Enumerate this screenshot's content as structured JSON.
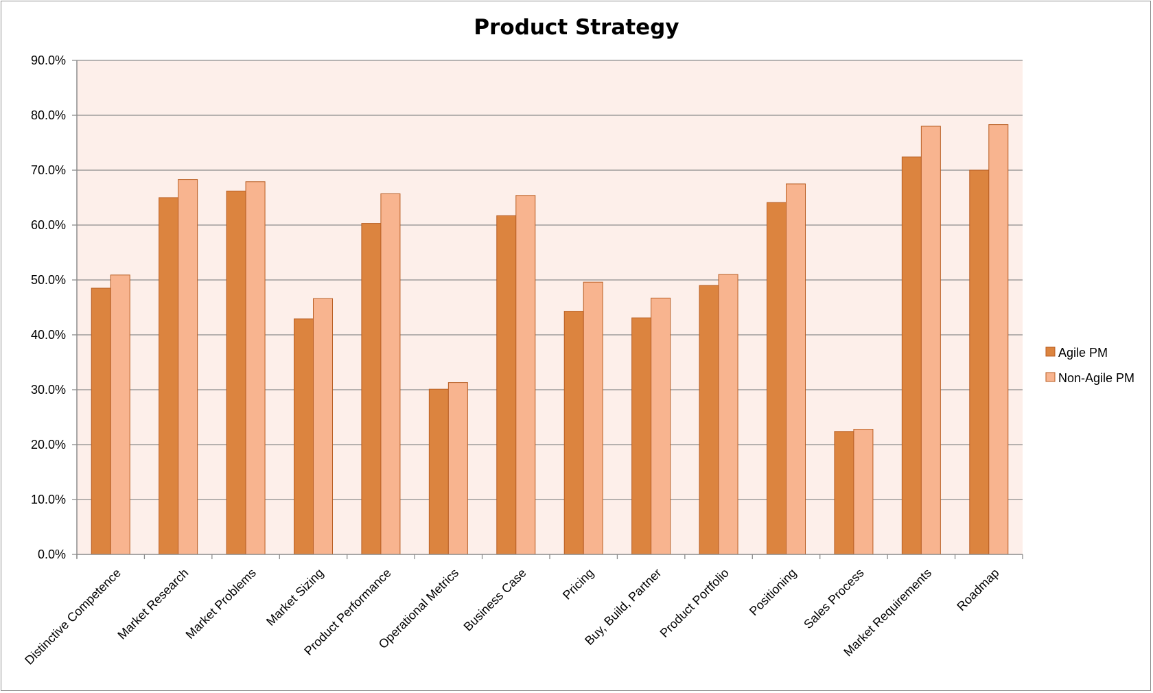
{
  "chart_data": {
    "type": "bar",
    "title": "Product Strategy",
    "xlabel": "",
    "ylabel": "",
    "ylim": [
      0,
      0.9
    ],
    "yticks": [
      "0.0%",
      "10.0%",
      "20.0%",
      "30.0%",
      "40.0%",
      "50.0%",
      "60.0%",
      "70.0%",
      "80.0%",
      "90.0%"
    ],
    "grid": true,
    "legend_position": "right",
    "categories": [
      "Distinctive Competence",
      "Market Research",
      "Market Problems",
      "Market Sizing",
      "Product Performance",
      "Operational Metrics",
      "Business Case",
      "Pricing",
      "Buy, Build, Partner",
      "Product Portfolio",
      "Positioning",
      "Sales Process",
      "Market Requirements",
      "Roadmap"
    ],
    "series": [
      {
        "name": "Agile PM",
        "color": "#dc843f",
        "values": [
          0.485,
          0.65,
          0.662,
          0.429,
          0.603,
          0.301,
          0.617,
          0.443,
          0.431,
          0.49,
          0.641,
          0.224,
          0.724,
          0.7
        ]
      },
      {
        "name": "Non-Agile PM",
        "color": "#f8b48f",
        "values": [
          0.509,
          0.683,
          0.679,
          0.466,
          0.657,
          0.313,
          0.654,
          0.496,
          0.467,
          0.51,
          0.675,
          0.228,
          0.78,
          0.783
        ]
      }
    ],
    "plot_background": "#fdefea",
    "gridline_color": "#8c8c8c",
    "bar_border_color": "#b85e23"
  }
}
